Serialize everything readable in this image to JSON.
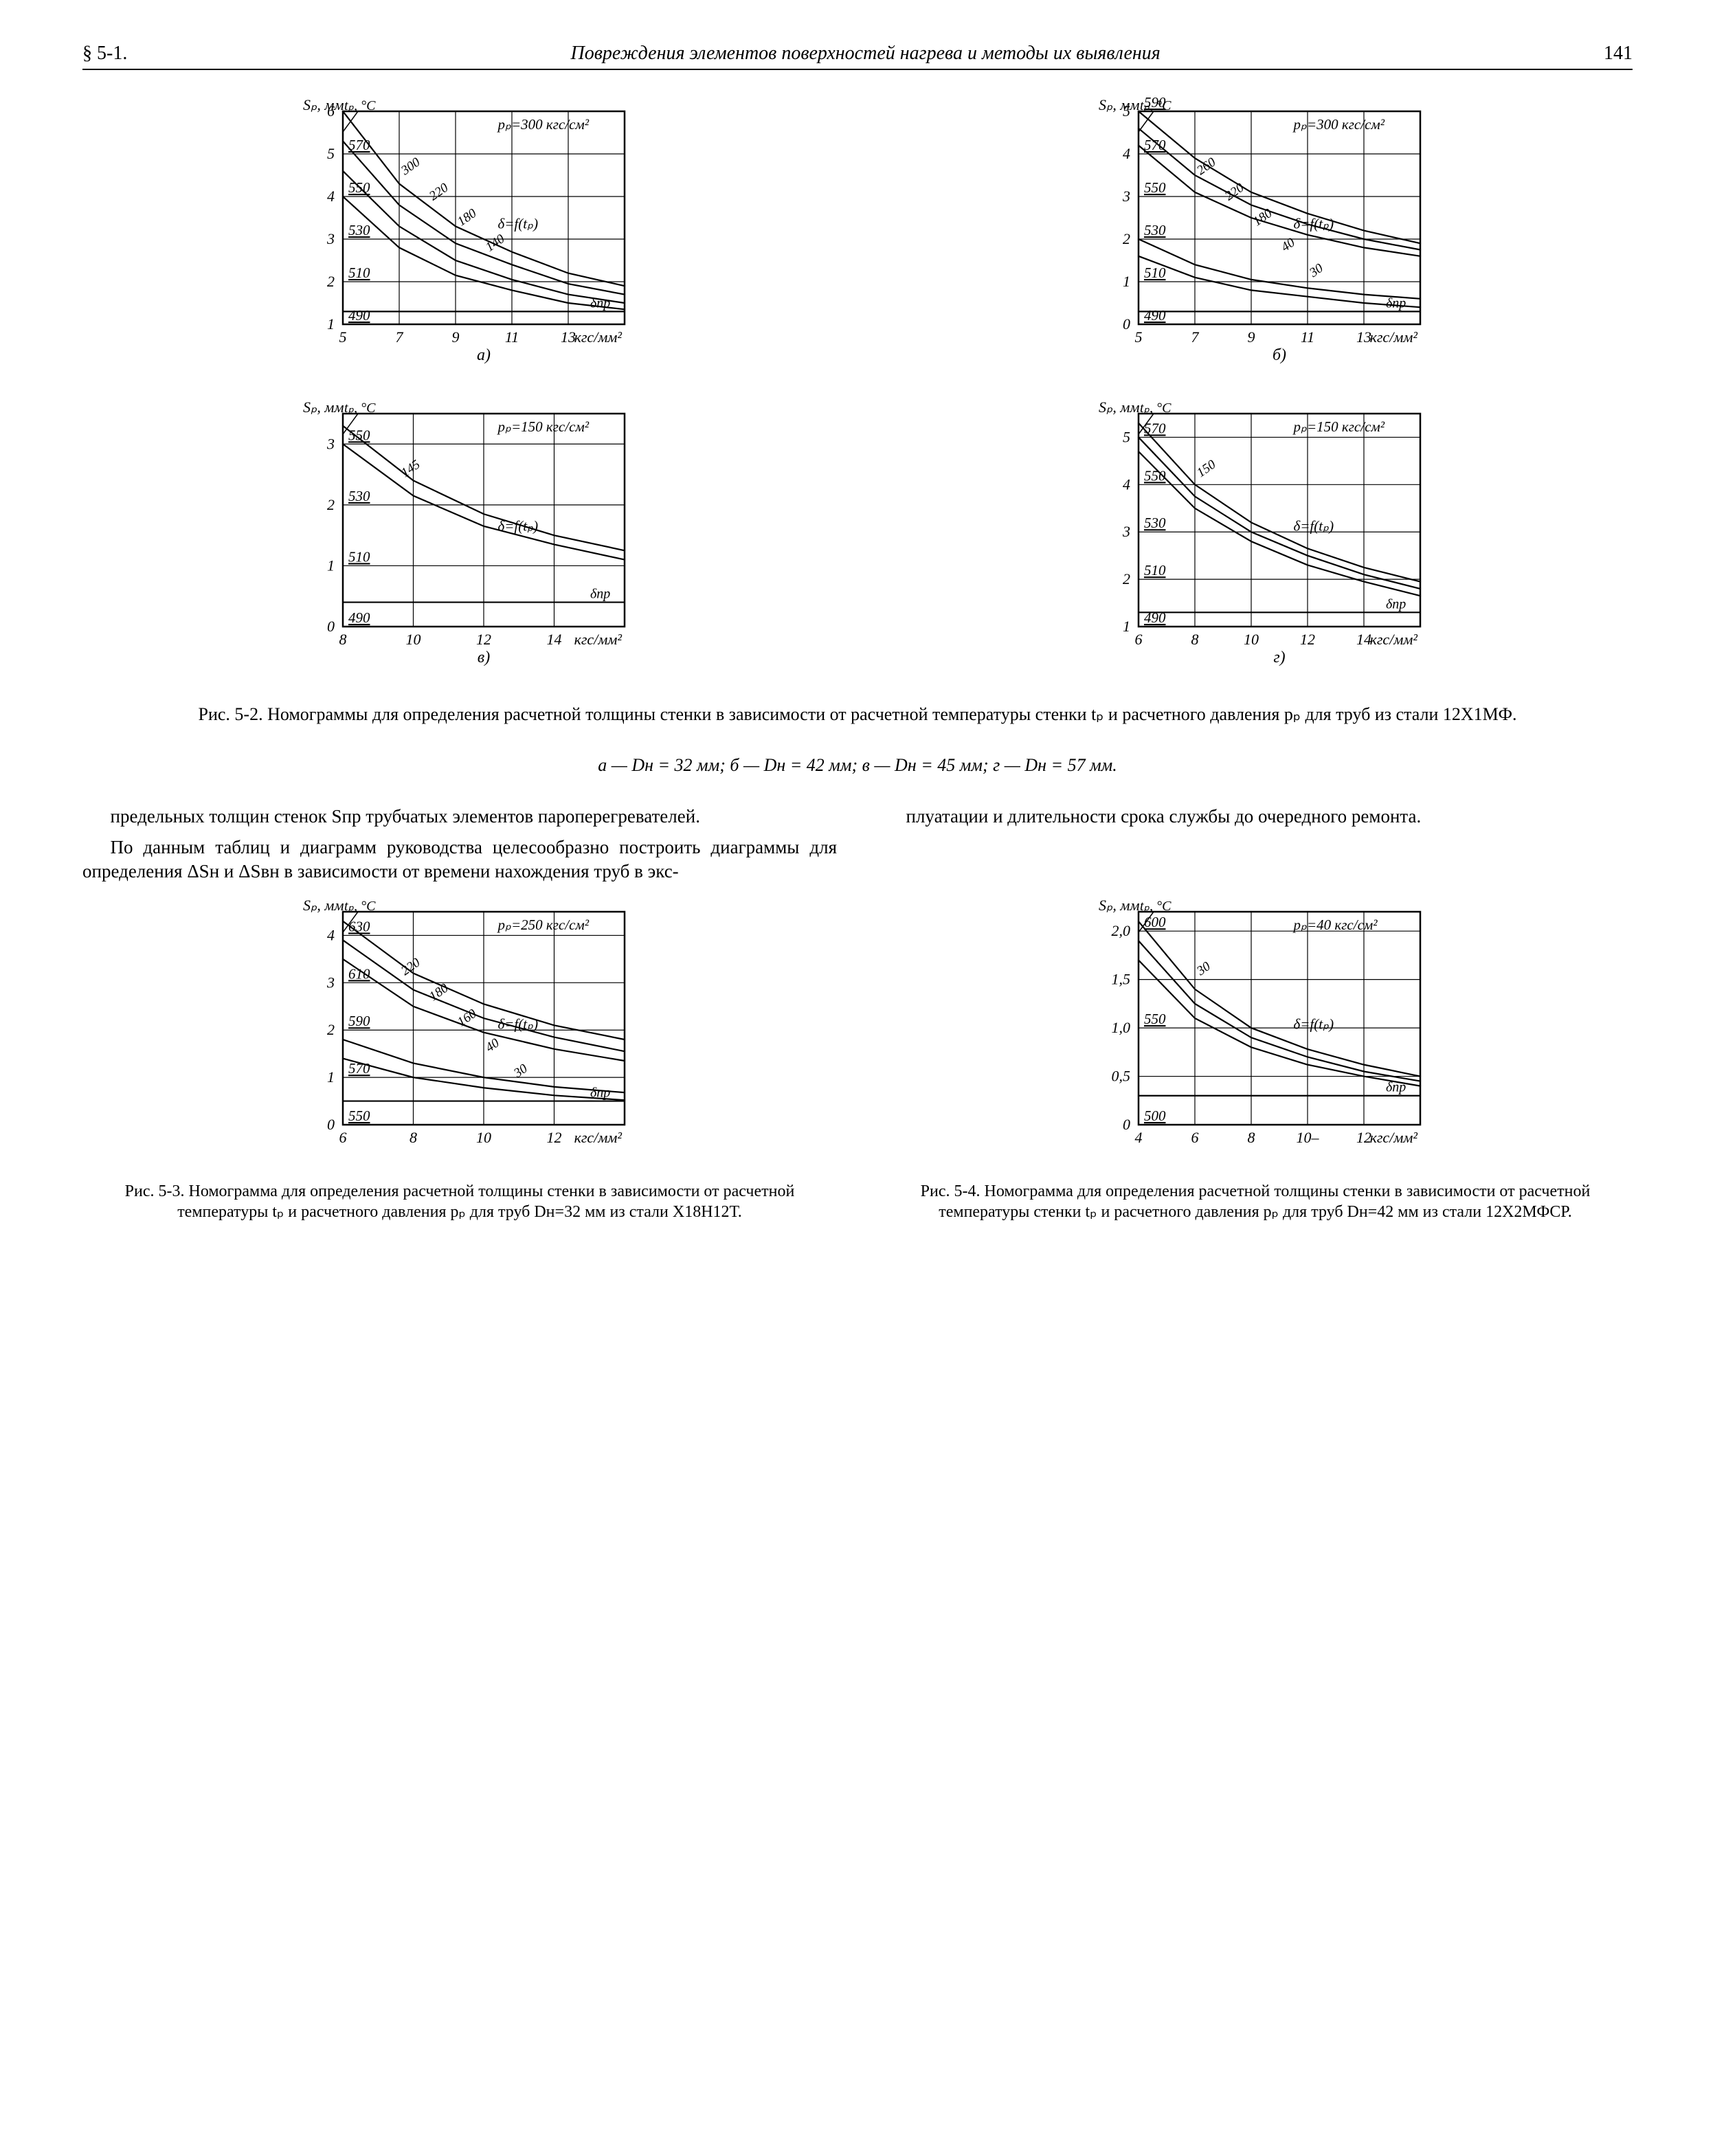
{
  "header": {
    "section": "§ 5-1.",
    "title": "Повреждения элементов поверхностей нагрева и методы их выявления",
    "pagenum": "141"
  },
  "axisLabels": {
    "y": "Sₚ, мм",
    "y2": "tₚ, °C",
    "x": "кгс/мм²",
    "delta_ftp": "δ=f(tₚ)",
    "delta_pr": "δпр"
  },
  "charts": [
    {
      "id": "a",
      "pp_label": "pₚ=300 кгс/см²",
      "sub": "а)",
      "xRange": [
        5,
        15
      ],
      "xTicks": [
        5,
        7,
        9,
        11,
        13
      ],
      "yRange": [
        1,
        6
      ],
      "yTicks": [
        1,
        2,
        3,
        4,
        5,
        6
      ],
      "tempLines": [
        {
          "label": "570",
          "y": 5
        },
        {
          "label": "550",
          "y": 4
        },
        {
          "label": "530",
          "y": 3
        },
        {
          "label": "510",
          "y": 2
        },
        {
          "label": "490",
          "y": 1
        }
      ],
      "curveLabels": [
        "300",
        "220",
        "180",
        "140"
      ],
      "deltaPrY": 1.3,
      "curves": [
        {
          "pts": [
            [
              5,
              6
            ],
            [
              7,
              4.3
            ],
            [
              9,
              3.3
            ],
            [
              11,
              2.7
            ],
            [
              13,
              2.2
            ],
            [
              15,
              1.9
            ]
          ]
        },
        {
          "pts": [
            [
              5,
              5.3
            ],
            [
              7,
              3.8
            ],
            [
              9,
              2.9
            ],
            [
              11,
              2.4
            ],
            [
              13,
              1.95
            ],
            [
              15,
              1.7
            ]
          ]
        },
        {
          "pts": [
            [
              5,
              4.6
            ],
            [
              7,
              3.3
            ],
            [
              9,
              2.5
            ],
            [
              11,
              2.05
            ],
            [
              13,
              1.7
            ],
            [
              15,
              1.5
            ]
          ]
        },
        {
          "pts": [
            [
              5,
              4.0
            ],
            [
              7,
              2.8
            ],
            [
              9,
              2.15
            ],
            [
              11,
              1.8
            ],
            [
              13,
              1.5
            ],
            [
              15,
              1.35
            ]
          ]
        }
      ]
    },
    {
      "id": "b",
      "pp_label": "pₚ=300 кгс/см²",
      "sub": "б)",
      "xRange": [
        5,
        15
      ],
      "xTicks": [
        5,
        7,
        9,
        11,
        13
      ],
      "yRange": [
        0,
        5
      ],
      "yTicks": [
        0,
        1,
        2,
        3,
        4,
        5
      ],
      "tempLines": [
        {
          "label": "590",
          "y": 5
        },
        {
          "label": "570",
          "y": 4
        },
        {
          "label": "550",
          "y": 3
        },
        {
          "label": "530",
          "y": 2
        },
        {
          "label": "510",
          "y": 1
        },
        {
          "label": "490",
          "y": 0
        }
      ],
      "curveLabels": [
        "260",
        "220",
        "180",
        "40",
        "30"
      ],
      "deltaPrY": 0.3,
      "curves": [
        {
          "pts": [
            [
              5,
              5
            ],
            [
              7,
              3.9
            ],
            [
              9,
              3.1
            ],
            [
              11,
              2.6
            ],
            [
              13,
              2.2
            ],
            [
              15,
              1.9
            ]
          ]
        },
        {
          "pts": [
            [
              5,
              4.6
            ],
            [
              7,
              3.5
            ],
            [
              9,
              2.8
            ],
            [
              11,
              2.35
            ],
            [
              13,
              2.0
            ],
            [
              15,
              1.75
            ]
          ]
        },
        {
          "pts": [
            [
              5,
              4.2
            ],
            [
              7,
              3.1
            ],
            [
              9,
              2.5
            ],
            [
              11,
              2.1
            ],
            [
              13,
              1.8
            ],
            [
              15,
              1.6
            ]
          ]
        },
        {
          "pts": [
            [
              5,
              2.0
            ],
            [
              7,
              1.4
            ],
            [
              9,
              1.05
            ],
            [
              11,
              0.85
            ],
            [
              13,
              0.7
            ],
            [
              15,
              0.6
            ]
          ]
        },
        {
          "pts": [
            [
              5,
              1.6
            ],
            [
              7,
              1.1
            ],
            [
              9,
              0.8
            ],
            [
              11,
              0.65
            ],
            [
              13,
              0.5
            ],
            [
              15,
              0.4
            ]
          ]
        }
      ]
    },
    {
      "id": "v",
      "pp_label": "pₚ=150 кгс/см²",
      "sub": "в)",
      "xRange": [
        8,
        16
      ],
      "xTicks": [
        8,
        10,
        12,
        14
      ],
      "yRange": [
        0,
        3.5
      ],
      "yTicks": [
        0,
        1,
        2,
        3
      ],
      "tempLines": [
        {
          "label": "550",
          "y": 3
        },
        {
          "label": "530",
          "y": 2
        },
        {
          "label": "510",
          "y": 1
        },
        {
          "label": "490",
          "y": 0
        }
      ],
      "curveLabels": [
        "145"
      ],
      "deltaPrY": 0.4,
      "curves": [
        {
          "pts": [
            [
              8,
              3.3
            ],
            [
              10,
              2.4
            ],
            [
              12,
              1.85
            ],
            [
              14,
              1.5
            ],
            [
              16,
              1.25
            ]
          ]
        },
        {
          "pts": [
            [
              8,
              3.0
            ],
            [
              10,
              2.15
            ],
            [
              12,
              1.65
            ],
            [
              14,
              1.35
            ],
            [
              16,
              1.1
            ]
          ]
        }
      ]
    },
    {
      "id": "g",
      "pp_label": "pₚ=150 кгс/см²",
      "sub": "г)",
      "xRange": [
        6,
        16
      ],
      "xTicks": [
        6,
        8,
        10,
        12,
        14
      ],
      "yRange": [
        1,
        5.5
      ],
      "yTicks": [
        1,
        2,
        3,
        4,
        5
      ],
      "tempLines": [
        {
          "label": "570",
          "y": 5
        },
        {
          "label": "550",
          "y": 4
        },
        {
          "label": "530",
          "y": 3
        },
        {
          "label": "510",
          "y": 2
        },
        {
          "label": "490",
          "y": 1
        }
      ],
      "curveLabels": [
        "150"
      ],
      "deltaPrY": 1.3,
      "curves": [
        {
          "pts": [
            [
              6,
              5.3
            ],
            [
              8,
              4.0
            ],
            [
              10,
              3.2
            ],
            [
              12,
              2.65
            ],
            [
              14,
              2.25
            ],
            [
              16,
              1.95
            ]
          ]
        },
        {
          "pts": [
            [
              6,
              5.0
            ],
            [
              8,
              3.75
            ],
            [
              10,
              3.0
            ],
            [
              12,
              2.5
            ],
            [
              14,
              2.1
            ],
            [
              16,
              1.8
            ]
          ]
        },
        {
          "pts": [
            [
              6,
              4.7
            ],
            [
              8,
              3.5
            ],
            [
              10,
              2.8
            ],
            [
              12,
              2.3
            ],
            [
              14,
              1.95
            ],
            [
              16,
              1.65
            ]
          ]
        }
      ]
    }
  ],
  "fig52_caption": "Рис. 5-2. Номограммы для определения расчетной толщины стенки в зависимости от расчетной температуры стенки tₚ и расчетного давления pₚ для труб из стали 12Х1МФ.",
  "fig52_sub": "а — Dн = 32 мм;  б — Dн = 42 мм;  в — Dн = 45 мм;  г — Dн = 57 мм.",
  "bodyText": {
    "p1": "предельных толщин стенок Sпр трубчатых элементов пароперегревателей.",
    "p2": "По данным таблиц и диаграмм руководства целесообразно построить диаграммы для определения ΔSн и ΔSвн в зависимости от времени нахождения труб в экс-",
    "p3": "плуатации и длительности срока службы до очередного ремонта."
  },
  "chart53": {
    "pp_label": "pₚ=250 кгс/см²",
    "xRange": [
      6,
      14
    ],
    "xTicks": [
      6,
      8,
      10,
      12
    ],
    "yRange": [
      0,
      4.5
    ],
    "yTicks": [
      0,
      1,
      2,
      3,
      4
    ],
    "tempLines": [
      {
        "label": "630",
        "y": 4
      },
      {
        "label": "610",
        "y": 3
      },
      {
        "label": "590",
        "y": 2
      },
      {
        "label": "570",
        "y": 1
      },
      {
        "label": "550",
        "y": 0
      }
    ],
    "curveLabels": [
      "220",
      "180",
      "160",
      "40",
      "30"
    ],
    "deltaPrY": 0.5,
    "curves": [
      {
        "pts": [
          [
            6,
            4.3
          ],
          [
            8,
            3.2
          ],
          [
            10,
            2.55
          ],
          [
            12,
            2.1
          ],
          [
            14,
            1.8
          ]
        ]
      },
      {
        "pts": [
          [
            6,
            3.9
          ],
          [
            8,
            2.85
          ],
          [
            10,
            2.25
          ],
          [
            12,
            1.85
          ],
          [
            14,
            1.55
          ]
        ]
      },
      {
        "pts": [
          [
            6,
            3.5
          ],
          [
            8,
            2.5
          ],
          [
            10,
            1.95
          ],
          [
            12,
            1.6
          ],
          [
            14,
            1.35
          ]
        ]
      },
      {
        "pts": [
          [
            6,
            1.8
          ],
          [
            8,
            1.3
          ],
          [
            10,
            1.0
          ],
          [
            12,
            0.8
          ],
          [
            14,
            0.68
          ]
        ]
      },
      {
        "pts": [
          [
            6,
            1.4
          ],
          [
            8,
            1.0
          ],
          [
            10,
            0.78
          ],
          [
            12,
            0.62
          ],
          [
            14,
            0.52
          ]
        ]
      }
    ]
  },
  "chart54": {
    "pp_label": "pₚ=40 кгс/см²",
    "xRange": [
      4,
      14
    ],
    "xTicks": [
      4,
      6,
      8,
      10,
      12
    ],
    "xTickLabels": [
      "4",
      "6",
      "8",
      "10–",
      "12"
    ],
    "yRange": [
      0,
      2.2
    ],
    "yTicks": [
      0,
      0.5,
      1.0,
      1.5,
      2.0
    ],
    "yTickLabels": [
      "0",
      "0,5",
      "1,0",
      "1,5",
      "2,0"
    ],
    "tempLines": [
      {
        "label": "600",
        "y": 2.0
      },
      {
        "label": "550",
        "y": 1.0
      },
      {
        "label": "500",
        "y": 0
      }
    ],
    "curveLabels": [
      "30"
    ],
    "deltaPrY": 0.3,
    "curves": [
      {
        "pts": [
          [
            4,
            2.1
          ],
          [
            6,
            1.4
          ],
          [
            8,
            1.0
          ],
          [
            10,
            0.78
          ],
          [
            12,
            0.62
          ],
          [
            14,
            0.5
          ]
        ]
      },
      {
        "pts": [
          [
            4,
            1.9
          ],
          [
            6,
            1.25
          ],
          [
            8,
            0.9
          ],
          [
            10,
            0.7
          ],
          [
            12,
            0.55
          ],
          [
            14,
            0.45
          ]
        ]
      },
      {
        "pts": [
          [
            4,
            1.7
          ],
          [
            6,
            1.1
          ],
          [
            8,
            0.8
          ],
          [
            10,
            0.62
          ],
          [
            12,
            0.5
          ],
          [
            14,
            0.4
          ]
        ]
      }
    ]
  },
  "fig53_caption": "Рис. 5-3. Номограмма для определения расчетной толщины стенки в зависимости от расчетной температуры tₚ и расчетного давления pₚ для труб Dн=32 мм из стали Х18Н12Т.",
  "fig54_caption": "Рис. 5-4. Номограмма для определения расчетной толщины стенки в зависимости от расчетной температуры стенки tₚ и расчетного давления pₚ для труб Dн=42 мм из стали 12Х2МФСР.",
  "style": {
    "stroke": "#000000",
    "fill": "none",
    "gridStroke": "#000000",
    "gridWidth": 1.2,
    "frameWidth": 2.5,
    "curveWidth": 2.2,
    "font": "italic 22px 'Times New Roman', serif",
    "fontUpright": "22px 'Times New Roman', serif",
    "chartW": 520,
    "chartH": 400,
    "padL": 90,
    "padR": 20,
    "padT": 20,
    "padB": 70
  }
}
